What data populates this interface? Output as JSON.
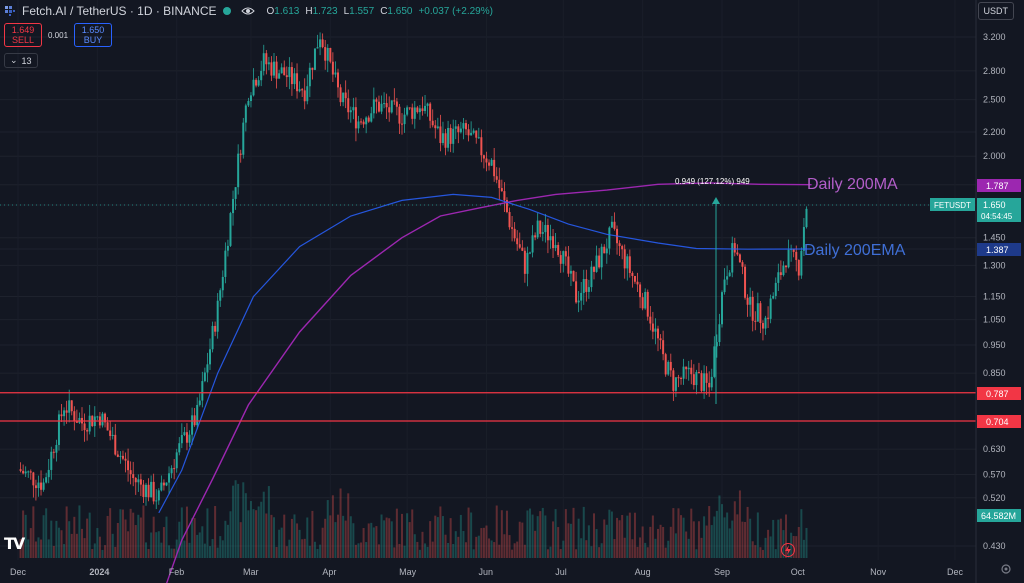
{
  "header": {
    "symbol": "Fetch.AI / TetherUS · 1D · BINANCE",
    "ohlc": [
      {
        "k": "O",
        "v": "1.613"
      },
      {
        "k": "H",
        "v": "1.723"
      },
      {
        "k": "L",
        "v": "1.557"
      },
      {
        "k": "C",
        "v": "1.650"
      },
      {
        "k": "",
        "v": "+0.037 (+2.29%)"
      }
    ]
  },
  "trade": {
    "sell_price": "1.649",
    "sell_label": "SELL",
    "spread": "0.001",
    "buy_price": "1.650",
    "buy_label": "BUY"
  },
  "indicators_toggle": "13",
  "currency": "USDT",
  "colors": {
    "background": "#131722",
    "up": "#26a69a",
    "down": "#ef5350",
    "ma200": "#9c27b0",
    "ema200": "#2962ff",
    "support": "#f23645"
  },
  "chart_data": {
    "type": "candlestick",
    "x_ticks": [
      "Dec",
      "2024",
      "Feb",
      "Mar",
      "Apr",
      "May",
      "Jun",
      "Jul",
      "Aug",
      "Sep",
      "Oct",
      "Nov",
      "Dec"
    ],
    "y_ticks": [
      "3.200",
      "2.800",
      "2.500",
      "2.200",
      "2.000",
      "1.787",
      "1.650",
      "1.450",
      "1.387",
      "1.300",
      "1.150",
      "1.050",
      "0.950",
      "0.850",
      "0.787",
      "0.704",
      "0.630",
      "0.570",
      "0.520",
      "0.430"
    ],
    "y_scale": "log",
    "annotations": {
      "ma_label": "Daily 200MA",
      "ema_label": "Daily 200EMA",
      "measure": "0.949 (127.12%) 949"
    },
    "price_labels": {
      "ma200": "1.787",
      "symbol": "FETUSDT",
      "last": "1.650",
      "countdown": "04:54:45",
      "ema200": "1.387",
      "support_high": "0.787",
      "support_low": "0.704",
      "volume": "64.582M"
    },
    "horizontal_lines": [
      0.787,
      0.704
    ],
    "price_path": [
      [
        0.62,
        0.58
      ],
      [
        10,
        0.55
      ],
      [
        18,
        0.75
      ],
      [
        25,
        0.7
      ],
      [
        32,
        0.72
      ],
      [
        45,
        0.56
      ],
      [
        55,
        0.52
      ],
      [
        62,
        0.62
      ],
      [
        70,
        0.72
      ],
      [
        78,
        1.1
      ],
      [
        84,
        1.7
      ],
      [
        90,
        2.6
      ],
      [
        96,
        2.9
      ],
      [
        105,
        2.75
      ],
      [
        112,
        2.6
      ],
      [
        118,
        3.25
      ],
      [
        126,
        2.5
      ],
      [
        133,
        2.3
      ],
      [
        140,
        2.45
      ],
      [
        150,
        2.35
      ],
      [
        158,
        2.45
      ],
      [
        165,
        2.15
      ],
      [
        175,
        2.2
      ],
      [
        185,
        1.95
      ],
      [
        193,
        1.5
      ],
      [
        198,
        1.3
      ],
      [
        203,
        1.5
      ],
      [
        210,
        1.45
      ],
      [
        218,
        1.15
      ],
      [
        224,
        1.25
      ],
      [
        232,
        1.48
      ],
      [
        238,
        1.3
      ],
      [
        246,
        1.1
      ],
      [
        252,
        0.9
      ],
      [
        256,
        0.82
      ],
      [
        263,
        0.85
      ],
      [
        270,
        0.8
      ],
      [
        276,
        1.25
      ],
      [
        280,
        1.4
      ],
      [
        286,
        1.1
      ],
      [
        292,
        1.05
      ],
      [
        300,
        1.35
      ],
      [
        305,
        1.3
      ],
      [
        308,
        1.65
      ]
    ],
    "ma200_path": [
      [
        56,
        0.35
      ],
      [
        64,
        0.44
      ],
      [
        76,
        0.56
      ],
      [
        90,
        0.75
      ],
      [
        110,
        1.0
      ],
      [
        130,
        1.25
      ],
      [
        150,
        1.45
      ],
      [
        165,
        1.58
      ],
      [
        180,
        1.63
      ],
      [
        195,
        1.68
      ],
      [
        210,
        1.72
      ],
      [
        230,
        1.75
      ],
      [
        250,
        1.79
      ],
      [
        270,
        1.8
      ],
      [
        290,
        1.79
      ],
      [
        310,
        1.787
      ]
    ],
    "ema200_path": [
      [
        55,
        0.49
      ],
      [
        64,
        0.58
      ],
      [
        78,
        0.85
      ],
      [
        92,
        1.15
      ],
      [
        110,
        1.4
      ],
      [
        130,
        1.58
      ],
      [
        150,
        1.68
      ],
      [
        170,
        1.72
      ],
      [
        185,
        1.7
      ],
      [
        200,
        1.62
      ],
      [
        215,
        1.53
      ],
      [
        230,
        1.47
      ],
      [
        250,
        1.42
      ],
      [
        265,
        1.39
      ],
      [
        285,
        1.386
      ],
      [
        310,
        1.387
      ]
    ]
  }
}
